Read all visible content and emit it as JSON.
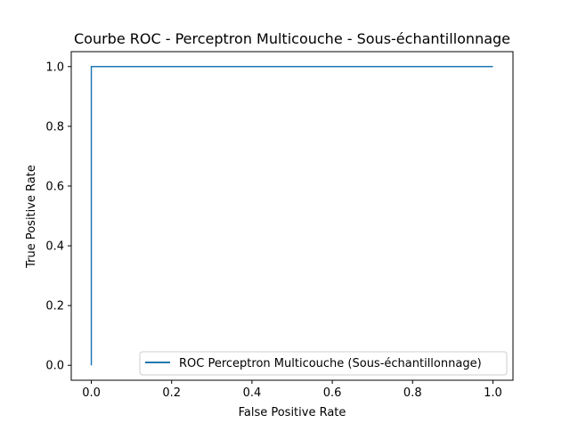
{
  "chart_data": {
    "type": "line",
    "title": "Courbe ROC - Perceptron Multicouche - Sous-échantillonnage",
    "xlabel": "False Positive Rate",
    "ylabel": "True Positive Rate",
    "xlim": [
      -0.05,
      1.05
    ],
    "ylim": [
      -0.05,
      1.05
    ],
    "xticks": [
      "0.0",
      "0.2",
      "0.4",
      "0.6",
      "0.8",
      "1.0"
    ],
    "yticks": [
      "0.0",
      "0.2",
      "0.4",
      "0.6",
      "0.8",
      "1.0"
    ],
    "grid": false,
    "legend_position": "lower right",
    "series": [
      {
        "name": "ROC Perceptron Multicouche (Sous-échantillonnage)",
        "color": "#1f77b4",
        "x": [
          0.0,
          0.0,
          1.0
        ],
        "y": [
          0.0,
          1.0,
          1.0
        ]
      }
    ]
  }
}
